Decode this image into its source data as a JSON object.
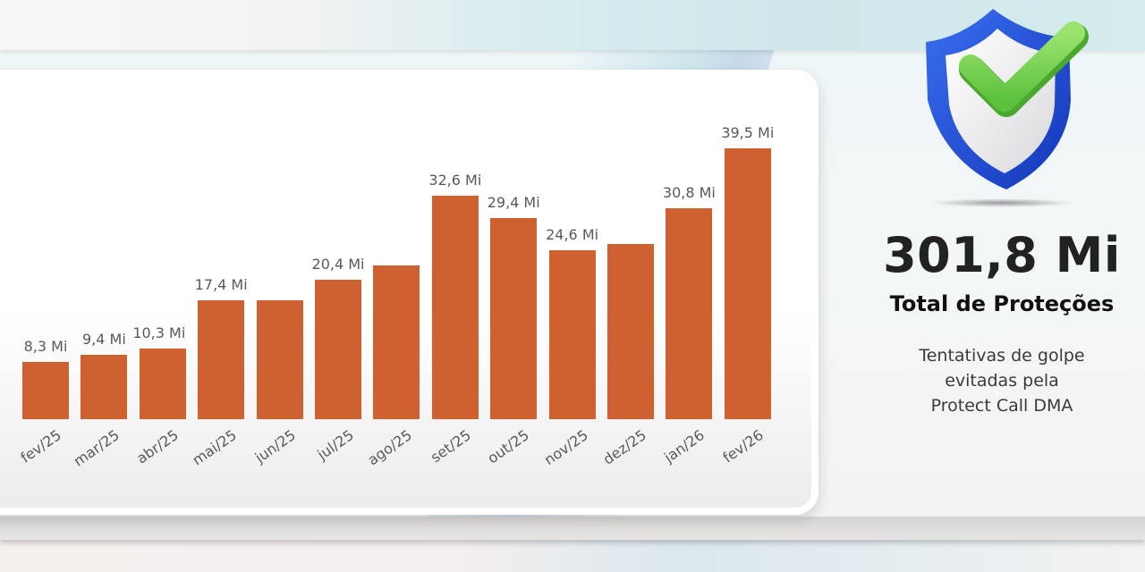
{
  "chart_data": {
    "type": "bar",
    "title": "",
    "xlabel": "",
    "ylabel": "",
    "unit": "Mi",
    "ylim": [
      0,
      40
    ],
    "grid": false,
    "legend": null,
    "color": "#cf6131",
    "categories": [
      "fev/25",
      "mar/25",
      "abr/25",
      "mai/25",
      "jun/25",
      "jul/25",
      "ago/25",
      "set/25",
      "out/25",
      "nov/25",
      "dez/25",
      "jan/26",
      "fev/26"
    ],
    "values": [
      8.3,
      9.4,
      10.3,
      17.4,
      17.4,
      20.4,
      22.4,
      32.6,
      29.4,
      24.6,
      25.6,
      30.8,
      39.5
    ],
    "data_labels": [
      "8,3 Mi",
      "9,4 Mi",
      "10,3 Mi",
      "17,4 Mi",
      "",
      "20,4 Mi",
      "",
      "32,6 Mi",
      "29,4 Mi",
      "24,6 Mi",
      "",
      "30,8 Mi",
      "39,5 Mi"
    ],
    "visible_x_labels": [
      "ev/25",
      "mar/25",
      "abr/25",
      "mai/25",
      "jun/25",
      "jul/25",
      "ago/25",
      "set/25",
      "out/25",
      "nov/25",
      "dez/25",
      "jan/26",
      "fev/26"
    ]
  },
  "summary": {
    "total_value": "301,8 Mi",
    "total_label": "Total de Proteções",
    "description_lines": [
      "Tentativas de golpe",
      "evitadas pela",
      "Protect Call DMA"
    ]
  },
  "icons": {
    "badge": "shield-check-icon"
  },
  "colors": {
    "bar": "#cf6131",
    "label_text": "#595959",
    "shield_blue": "#1f4fd6",
    "check_green": "#7ed957"
  }
}
